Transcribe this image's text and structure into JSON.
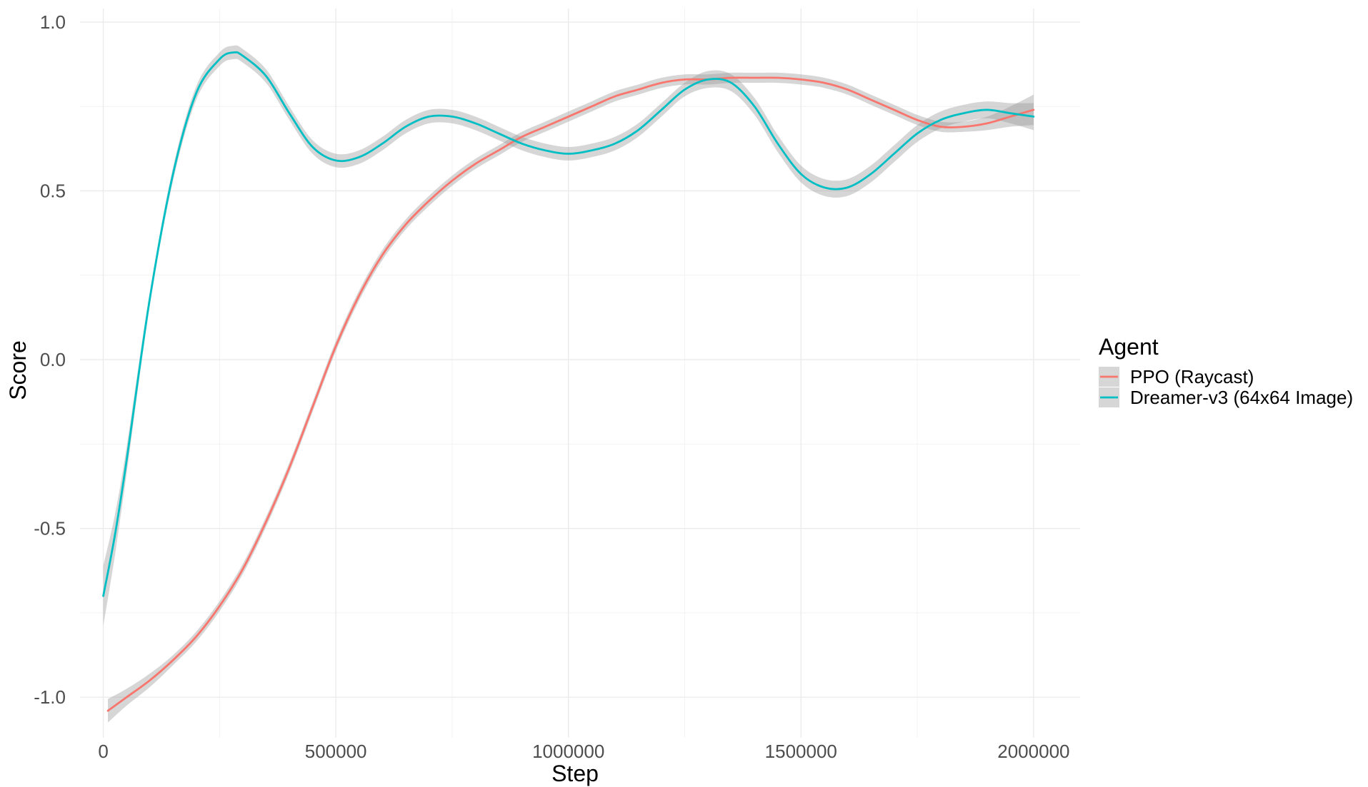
{
  "chart_data": {
    "type": "line",
    "xlabel": "Step",
    "ylabel": "Score",
    "xlim": [
      -50000,
      2100000
    ],
    "ylim": [
      -1.12,
      1.04
    ],
    "x_ticks": [
      0,
      500000,
      1000000,
      1500000,
      2000000
    ],
    "x_tick_labels": [
      "0",
      "500000",
      "1000000",
      "1500000",
      "2000000"
    ],
    "y_ticks": [
      -1.0,
      -0.5,
      0.0,
      0.5,
      1.0
    ],
    "y_tick_labels": [
      "-1.0",
      "-0.5",
      "0.0",
      "0.5",
      "1.0"
    ],
    "grid": true,
    "legend": {
      "title": "Agent",
      "position": "right"
    },
    "series": [
      {
        "name": "PPO (Raycast)",
        "color": "#F8766D",
        "x": [
          10000,
          50000,
          100000,
          150000,
          200000,
          250000,
          300000,
          350000,
          400000,
          450000,
          500000,
          550000,
          600000,
          650000,
          700000,
          750000,
          800000,
          850000,
          900000,
          950000,
          1000000,
          1050000,
          1100000,
          1150000,
          1200000,
          1250000,
          1300000,
          1350000,
          1400000,
          1450000,
          1500000,
          1550000,
          1600000,
          1650000,
          1700000,
          1750000,
          1800000,
          1850000,
          1900000,
          1950000,
          2000000
        ],
        "y": [
          -1.04,
          -1.0,
          -0.95,
          -0.89,
          -0.82,
          -0.73,
          -0.62,
          -0.48,
          -0.32,
          -0.14,
          0.04,
          0.19,
          0.31,
          0.4,
          0.47,
          0.53,
          0.58,
          0.62,
          0.66,
          0.69,
          0.72,
          0.75,
          0.78,
          0.8,
          0.82,
          0.83,
          0.83,
          0.835,
          0.835,
          0.835,
          0.83,
          0.82,
          0.8,
          0.77,
          0.74,
          0.71,
          0.69,
          0.69,
          0.7,
          0.72,
          0.74
        ],
        "ci": [
          0.035,
          0.025,
          0.02,
          0.015,
          0.015,
          0.015,
          0.015,
          0.015,
          0.015,
          0.015,
          0.015,
          0.015,
          0.015,
          0.015,
          0.015,
          0.015,
          0.015,
          0.015,
          0.015,
          0.015,
          0.015,
          0.015,
          0.015,
          0.015,
          0.015,
          0.015,
          0.015,
          0.015,
          0.015,
          0.015,
          0.015,
          0.015,
          0.015,
          0.015,
          0.015,
          0.015,
          0.015,
          0.015,
          0.02,
          0.03,
          0.045
        ]
      },
      {
        "name": "Dreamer-v3 (64x64 Image)",
        "color": "#00BFC4",
        "x": [
          0,
          25000,
          50000,
          100000,
          150000,
          200000,
          250000,
          280000,
          300000,
          350000,
          400000,
          450000,
          500000,
          550000,
          600000,
          650000,
          700000,
          750000,
          800000,
          850000,
          900000,
          950000,
          1000000,
          1050000,
          1100000,
          1150000,
          1200000,
          1250000,
          1300000,
          1350000,
          1400000,
          1450000,
          1500000,
          1550000,
          1600000,
          1650000,
          1700000,
          1750000,
          1800000,
          1850000,
          1900000,
          1950000,
          2000000
        ],
        "y": [
          -0.7,
          -0.52,
          -0.3,
          0.18,
          0.55,
          0.79,
          0.89,
          0.91,
          0.9,
          0.84,
          0.73,
          0.63,
          0.59,
          0.6,
          0.64,
          0.69,
          0.72,
          0.72,
          0.7,
          0.67,
          0.64,
          0.62,
          0.61,
          0.62,
          0.64,
          0.68,
          0.74,
          0.8,
          0.83,
          0.82,
          0.75,
          0.64,
          0.55,
          0.51,
          0.51,
          0.55,
          0.61,
          0.67,
          0.71,
          0.73,
          0.74,
          0.73,
          0.72
        ],
        "ci": [
          0.09,
          0.06,
          0.04,
          0.02,
          0.02,
          0.02,
          0.02,
          0.02,
          0.02,
          0.02,
          0.02,
          0.02,
          0.02,
          0.02,
          0.02,
          0.02,
          0.02,
          0.02,
          0.02,
          0.02,
          0.02,
          0.02,
          0.02,
          0.02,
          0.02,
          0.02,
          0.02,
          0.02,
          0.025,
          0.025,
          0.025,
          0.025,
          0.025,
          0.025,
          0.025,
          0.025,
          0.025,
          0.025,
          0.025,
          0.025,
          0.025,
          0.03,
          0.04
        ]
      }
    ],
    "band_color": "#999999"
  }
}
